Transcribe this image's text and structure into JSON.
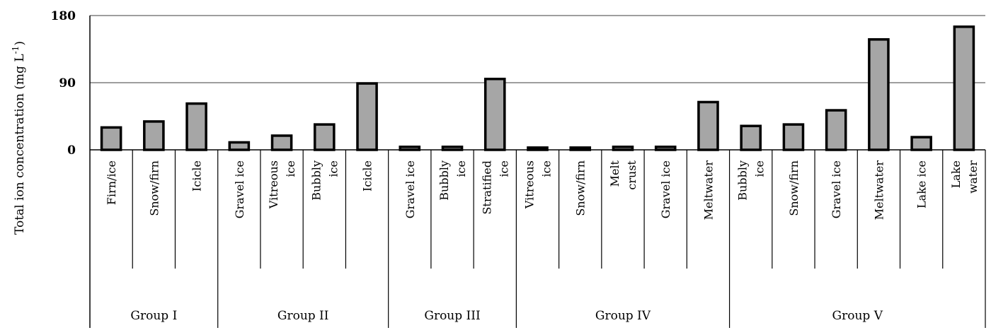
{
  "chart_data": {
    "type": "bar",
    "ylabel": "Total ion concentration (mg L",
    "ylabel_sup": "-1",
    "ylabel_close": ")",
    "ylim": [
      0,
      180
    ],
    "yticks": [
      0,
      90,
      180
    ],
    "grid": true,
    "legend": "none",
    "bar_color": "#a6a6a6",
    "groups": [
      {
        "name": "Group I",
        "categories": [
          {
            "label": [
              "Firn/ice"
            ],
            "value": 30
          },
          {
            "label": [
              "Snow/firn"
            ],
            "value": 38
          },
          {
            "label": [
              "Icicle"
            ],
            "value": 62
          }
        ]
      },
      {
        "name": "Group II",
        "categories": [
          {
            "label": [
              "Gravel ice"
            ],
            "value": 10
          },
          {
            "label": [
              "Vitreous",
              "ice"
            ],
            "value": 19
          },
          {
            "label": [
              "Bubbly",
              "ice"
            ],
            "value": 34
          },
          {
            "label": [
              "Icicle"
            ],
            "value": 89
          }
        ]
      },
      {
        "name": "Group III",
        "categories": [
          {
            "label": [
              "Gravel ice"
            ],
            "value": 4
          },
          {
            "label": [
              "Bubbly",
              "ice"
            ],
            "value": 4
          },
          {
            "label": [
              "Stratified",
              "ice"
            ],
            "value": 95
          }
        ]
      },
      {
        "name": "Group IV",
        "categories": [
          {
            "label": [
              "Vitreous",
              "ice"
            ],
            "value": 3
          },
          {
            "label": [
              "Snow/firn"
            ],
            "value": 3
          },
          {
            "label": [
              "Melt",
              "crust"
            ],
            "value": 4
          },
          {
            "label": [
              "Gravel ice"
            ],
            "value": 4
          },
          {
            "label": [
              "Meltwater"
            ],
            "value": 64
          }
        ]
      },
      {
        "name": "Group V",
        "categories": [
          {
            "label": [
              "Bubbly",
              "ice"
            ],
            "value": 32
          },
          {
            "label": [
              "Snow/firn"
            ],
            "value": 34
          },
          {
            "label": [
              "Gravel ice"
            ],
            "value": 53
          },
          {
            "label": [
              "Meltwater"
            ],
            "value": 148
          },
          {
            "label": [
              "Lake ice"
            ],
            "value": 17
          },
          {
            "label": [
              "Lake",
              "water"
            ],
            "value": 165
          }
        ]
      }
    ]
  }
}
